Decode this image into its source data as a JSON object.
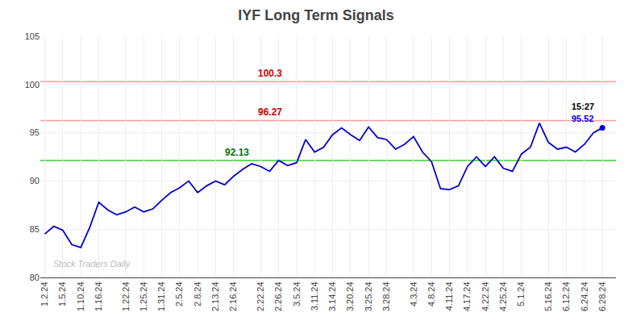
{
  "chart_data": {
    "type": "line",
    "title": "IYF Long Term Signals",
    "categories": [
      "1.2.24",
      null,
      "1.5.24",
      null,
      "1.10.24",
      null,
      "1.16.24",
      null,
      null,
      "1.22.24",
      null,
      "1.25.24",
      null,
      "1.31.24",
      null,
      "2.5.24",
      null,
      "2.8.24",
      null,
      "2.13.24",
      null,
      "2.16.24",
      null,
      null,
      "2.22.24",
      null,
      "2.26.24",
      null,
      "3.5.24",
      null,
      "3.11.24",
      null,
      "3.14.24",
      null,
      "3.20.24",
      null,
      "3.25.24",
      null,
      "3.28.24",
      null,
      null,
      "4.3.24",
      null,
      "4.8.24",
      null,
      "4.11.24",
      null,
      "4.17.24",
      null,
      "4.22.24",
      null,
      "4.25.24",
      null,
      "5.1.24",
      null,
      null,
      "5.16.24",
      null,
      "6.12.24",
      null,
      "6.24.24",
      null,
      "6.28.24"
    ],
    "values": [
      84.5,
      85.3,
      84.9,
      83.4,
      83.1,
      85.2,
      87.8,
      87.0,
      86.5,
      86.8,
      87.3,
      86.8,
      87.1,
      88.0,
      88.8,
      89.3,
      90.0,
      88.8,
      89.5,
      90.0,
      89.6,
      90.5,
      91.2,
      91.8,
      91.5,
      91.0,
      92.13,
      91.6,
      91.9,
      94.3,
      93.0,
      93.5,
      94.8,
      95.5,
      94.8,
      94.2,
      95.6,
      94.5,
      94.3,
      93.3,
      93.8,
      94.6,
      93.0,
      92.0,
      89.2,
      89.1,
      89.5,
      91.5,
      92.5,
      91.5,
      92.5,
      91.3,
      91.0,
      92.8,
      93.5,
      96.0,
      94.0,
      93.3,
      93.5,
      93.0,
      93.8,
      95.0,
      95.52
    ],
    "color": "#0000cc",
    "ylim": [
      80,
      105
    ],
    "yticks": [
      80,
      85,
      90,
      95,
      100,
      105
    ],
    "grid": true,
    "hlines": [
      {
        "value": 92.13,
        "color": "#33cc33",
        "label": "92.13",
        "label_color": "#007700"
      },
      {
        "value": 96.27,
        "color": "#ff9999",
        "label": "96.27",
        "label_color": "#cc0000"
      },
      {
        "value": 100.3,
        "color": "#ff9999",
        "label": "100.3",
        "label_color": "#cc0000"
      }
    ],
    "last_point_labels": [
      {
        "text": "15:27",
        "color": "#000000"
      },
      {
        "text": "95.52",
        "color": "#0000ee"
      }
    ],
    "watermark": "Stock Traders Daily"
  }
}
